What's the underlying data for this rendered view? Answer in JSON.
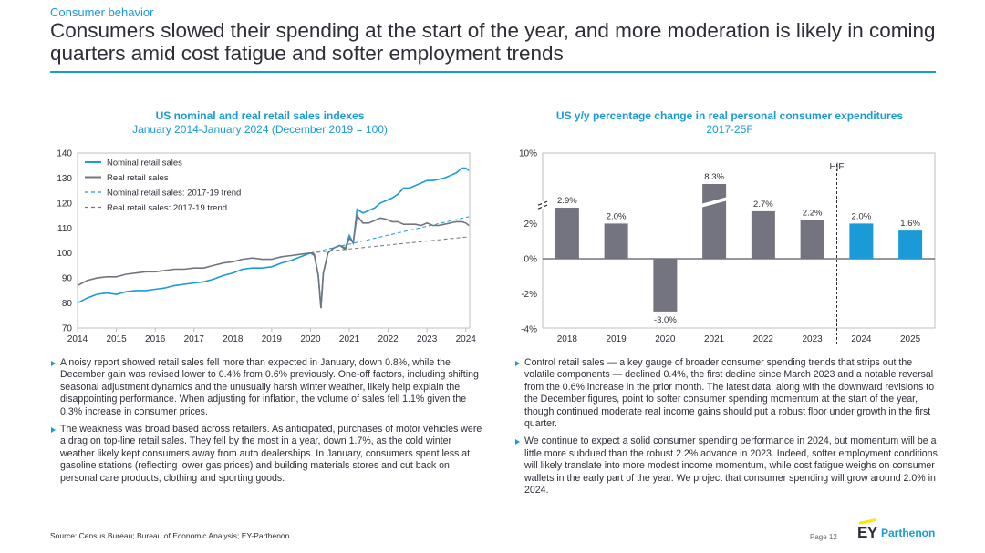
{
  "header": {
    "kicker": "Consumer behavior",
    "title": "Consumers slowed their spending at the start of the year, and more moderation is likely in coming quarters amid cost fatigue and softer employment trends"
  },
  "left_chart": {
    "title_line1": "US nominal and real retail sales indexes",
    "title_line2": "January 2014-January 2024 (December 2019 = 100)"
  },
  "right_chart": {
    "title_line1": "US y/y percentage change in real personal consumer expenditures",
    "title_line2": "2017-25F",
    "hf_label": "H|F"
  },
  "left_bullets": [
    "A noisy report showed retail sales fell more than expected in January, down 0.8%, while the December gain was revised lower to 0.4% from 0.6% previously. One-off factors, including shifting seasonal adjustment dynamics and the unusually harsh winter weather, likely help explain the disappointing performance. When adjusting for inflation, the volume of sales fell 1.1% given the 0.3% increase in consumer prices.",
    "The weakness was broad based across retailers. As anticipated, purchases of motor vehicles were a drag on top-line retail sales. They fell by the most in a year, down 1.7%, as the cold winter weather likely kept consumers away from auto dealerships. In January, consumers spent less at gasoline stations (reflecting lower gas prices) and building materials stores and cut back on personal care products, clothing and sporting goods."
  ],
  "right_bullets": [
    "Control retail sales — a key gauge of broader consumer spending trends that strips out the volatile components — declined 0.4%, the first decline since March 2023 and a notable reversal from the 0.6% increase in the prior month. The latest data, along with the downward revisions to the December figures, point to softer consumer spending momentum at the start of the year, though continued moderate real income gains should put a robust floor under growth in the first quarter.",
    "We continue to expect a solid consumer spending performance in 2024, but momentum will be a little more subdued than the robust 2.2% advance in 2023. Indeed, softer employment conditions will likely translate into more modest income momentum, while cost fatigue weighs on consumer wallets in the early part of the year. We project that consumer spending will grow around 2.0% in 2024."
  ],
  "footer": {
    "source": "Source: Census Bureau; Bureau of Economic Analysis; EY-Parthenon",
    "page": "Page 12",
    "logo_ey": "EY",
    "logo_parthenon": "Parthenon"
  },
  "chart_data": [
    {
      "type": "line",
      "title": "US nominal and real retail sales indexes",
      "subtitle": "January 2014-January 2024 (December 2019 = 100)",
      "xlim": [
        2014,
        2024.1
      ],
      "ylim": [
        70,
        140
      ],
      "x_ticks": [
        2014,
        2015,
        2016,
        2017,
        2018,
        2019,
        2020,
        2021,
        2022,
        2023,
        2024
      ],
      "y_ticks": [
        70,
        80,
        90,
        100,
        110,
        120,
        130,
        140
      ],
      "legend_position": "top-left",
      "series": [
        {
          "name": "Nominal retail sales",
          "style": "solid",
          "color": "#1a9ad6",
          "points": [
            [
              2014.0,
              80
            ],
            [
              2014.25,
              82
            ],
            [
              2014.5,
              83.5
            ],
            [
              2014.75,
              84
            ],
            [
              2015.0,
              83.5
            ],
            [
              2015.25,
              84.5
            ],
            [
              2015.5,
              85
            ],
            [
              2015.75,
              85
            ],
            [
              2016.0,
              85.5
            ],
            [
              2016.25,
              86
            ],
            [
              2016.5,
              87
            ],
            [
              2016.75,
              87.5
            ],
            [
              2017.0,
              88
            ],
            [
              2017.25,
              88.5
            ],
            [
              2017.5,
              89.5
            ],
            [
              2017.75,
              91
            ],
            [
              2018.0,
              92
            ],
            [
              2018.25,
              93.5
            ],
            [
              2018.5,
              94
            ],
            [
              2018.75,
              94
            ],
            [
              2019.0,
              94.5
            ],
            [
              2019.25,
              96
            ],
            [
              2019.5,
              97
            ],
            [
              2019.75,
              98.5
            ],
            [
              2020.0,
              100
            ],
            [
              2020.1,
              99.5
            ],
            [
              2020.2,
              91
            ],
            [
              2020.27,
              78
            ],
            [
              2020.33,
              92
            ],
            [
              2020.45,
              100
            ],
            [
              2020.6,
              102
            ],
            [
              2020.75,
              103
            ],
            [
              2020.9,
              102
            ],
            [
              2021.0,
              107
            ],
            [
              2021.1,
              104
            ],
            [
              2021.2,
              117.5
            ],
            [
              2021.35,
              116
            ],
            [
              2021.5,
              117
            ],
            [
              2021.65,
              118
            ],
            [
              2021.8,
              120
            ],
            [
              2021.95,
              121
            ],
            [
              2022.1,
              122
            ],
            [
              2022.25,
              123.5
            ],
            [
              2022.4,
              126
            ],
            [
              2022.55,
              126
            ],
            [
              2022.7,
              127
            ],
            [
              2022.85,
              128
            ],
            [
              2023.0,
              129
            ],
            [
              2023.15,
              129
            ],
            [
              2023.3,
              129.5
            ],
            [
              2023.45,
              130
            ],
            [
              2023.6,
              131
            ],
            [
              2023.75,
              132
            ],
            [
              2023.9,
              134
            ],
            [
              2024.0,
              134
            ],
            [
              2024.08,
              133
            ]
          ]
        },
        {
          "name": "Real retail sales",
          "style": "solid",
          "color": "#747480",
          "points": [
            [
              2014.0,
              87
            ],
            [
              2014.25,
              89
            ],
            [
              2014.5,
              90
            ],
            [
              2014.75,
              90.5
            ],
            [
              2015.0,
              90.5
            ],
            [
              2015.25,
              91.5
            ],
            [
              2015.5,
              92
            ],
            [
              2015.75,
              92.5
            ],
            [
              2016.0,
              92.5
            ],
            [
              2016.25,
              93
            ],
            [
              2016.5,
              93.5
            ],
            [
              2016.75,
              93.5
            ],
            [
              2017.0,
              94
            ],
            [
              2017.25,
              94
            ],
            [
              2017.5,
              95
            ],
            [
              2017.75,
              96
            ],
            [
              2018.0,
              96.5
            ],
            [
              2018.25,
              97.5
            ],
            [
              2018.5,
              98
            ],
            [
              2018.75,
              97.5
            ],
            [
              2019.0,
              97.5
            ],
            [
              2019.25,
              98.5
            ],
            [
              2019.5,
              99
            ],
            [
              2019.75,
              99.5
            ],
            [
              2020.0,
              100
            ],
            [
              2020.1,
              99
            ],
            [
              2020.2,
              91
            ],
            [
              2020.27,
              78
            ],
            [
              2020.33,
              92
            ],
            [
              2020.45,
              100
            ],
            [
              2020.6,
              102
            ],
            [
              2020.75,
              103
            ],
            [
              2020.9,
              101.5
            ],
            [
              2021.0,
              106
            ],
            [
              2021.1,
              104
            ],
            [
              2021.2,
              115
            ],
            [
              2021.35,
              112
            ],
            [
              2021.5,
              112
            ],
            [
              2021.65,
              113
            ],
            [
              2021.8,
              114
            ],
            [
              2021.95,
              113.5
            ],
            [
              2022.1,
              112.5
            ],
            [
              2022.25,
              112.5
            ],
            [
              2022.4,
              111.5
            ],
            [
              2022.55,
              111.5
            ],
            [
              2022.7,
              111.5
            ],
            [
              2022.85,
              111
            ],
            [
              2023.0,
              112
            ],
            [
              2023.15,
              111
            ],
            [
              2023.3,
              111
            ],
            [
              2023.45,
              111.5
            ],
            [
              2023.6,
              112
            ],
            [
              2023.75,
              112.5
            ],
            [
              2023.9,
              112.5
            ],
            [
              2024.0,
              112
            ],
            [
              2024.08,
              111
            ]
          ]
        },
        {
          "name": "Nominal retail sales: 2017-19 trend",
          "style": "dashed",
          "color": "#1a9ad6",
          "points": [
            [
              2020.0,
              100
            ],
            [
              2024.08,
              114.5
            ]
          ]
        },
        {
          "name": "Real retail sales: 2017-19 trend",
          "style": "dashed",
          "color": "#747480",
          "points": [
            [
              2020.0,
              100
            ],
            [
              2024.08,
              106.5
            ]
          ]
        }
      ]
    },
    {
      "type": "bar",
      "title": "US y/y percentage change in real personal consumer expenditures",
      "subtitle": "2017-25F",
      "categories": [
        "2018",
        "2019",
        "2020",
        "2021",
        "2022",
        "2023",
        "2024",
        "2025"
      ],
      "values": [
        2.9,
        2.0,
        -3.0,
        8.3,
        2.7,
        2.2,
        2.0,
        1.6
      ],
      "data_labels": [
        "2.9%",
        "2.0%",
        "-3.0%",
        "8.3%",
        "2.7%",
        "2.2%",
        "2.0%",
        "1.6%"
      ],
      "forecast_from": "2024",
      "y_ticks": [
        "-4%",
        "-2%",
        "0%",
        "2%",
        "10%"
      ],
      "axis_break": "between 2% and 10%",
      "colors": {
        "history": "#747480",
        "forecast": "#1a9ad6"
      }
    }
  ]
}
